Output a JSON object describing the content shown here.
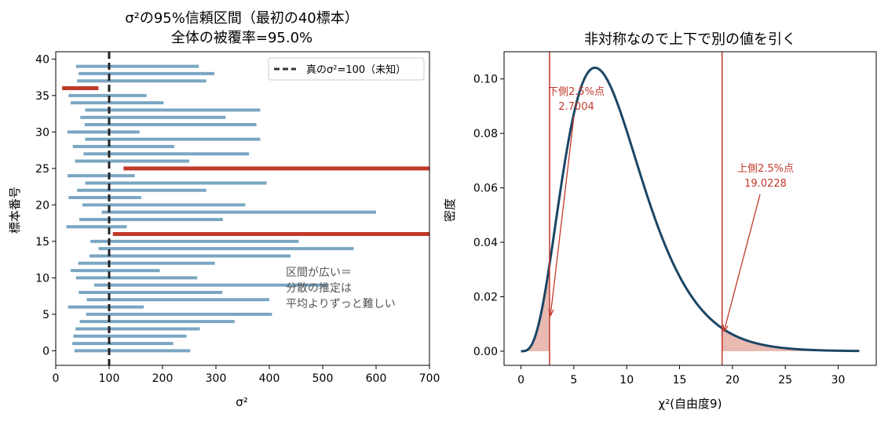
{
  "figure": {
    "background": "#ffffff",
    "colors": {
      "interval": "#7aa6c2",
      "miss": "#c0392b",
      "pdf": "#1b4665",
      "fill": "#e6b2a8",
      "text": "#000000",
      "note": "#555555"
    }
  },
  "chart_data": [
    {
      "type": "bar",
      "orientation": "horizontal-interval",
      "title_line1": "σ²の95%信頼区間（最初の40標本）",
      "title_line2": "全体の被覆率=95.0%",
      "xlabel": "σ²",
      "ylabel": "標本番号",
      "xlim": [
        0,
        700
      ],
      "ylim": [
        -2,
        41
      ],
      "xticks": [
        0,
        100,
        200,
        300,
        400,
        500,
        600,
        700
      ],
      "yticks": [
        0,
        5,
        10,
        15,
        20,
        25,
        30,
        35,
        40
      ],
      "true_value": 100,
      "legend": {
        "label": "真のσ²=100（未知）",
        "placement": "upper right"
      },
      "annotation": [
        "区間が広い＝",
        "分散の推定は",
        "平均よりずっと難しい"
      ],
      "intervals": [
        {
          "lo": 35,
          "hi": 252
        },
        {
          "lo": 31,
          "hi": 220
        },
        {
          "lo": 33,
          "hi": 245
        },
        {
          "lo": 37,
          "hi": 270
        },
        {
          "lo": 45,
          "hi": 335
        },
        {
          "lo": 57,
          "hi": 405
        },
        {
          "lo": 23,
          "hi": 165
        },
        {
          "lo": 58,
          "hi": 400
        },
        {
          "lo": 43,
          "hi": 312
        },
        {
          "lo": 72,
          "hi": 510
        },
        {
          "lo": 38,
          "hi": 265
        },
        {
          "lo": 28,
          "hi": 195
        },
        {
          "lo": 42,
          "hi": 298
        },
        {
          "lo": 63,
          "hi": 440
        },
        {
          "lo": 80,
          "hi": 558
        },
        {
          "lo": 65,
          "hi": 455
        },
        {
          "lo": 107,
          "hi": 760
        },
        {
          "lo": 20,
          "hi": 133
        },
        {
          "lo": 44,
          "hi": 313
        },
        {
          "lo": 86,
          "hi": 600
        },
        {
          "lo": 50,
          "hi": 355
        },
        {
          "lo": 24,
          "hi": 160
        },
        {
          "lo": 40,
          "hi": 282
        },
        {
          "lo": 55,
          "hi": 395
        },
        {
          "lo": 22,
          "hi": 148
        },
        {
          "lo": 127,
          "hi": 900
        },
        {
          "lo": 36,
          "hi": 250
        },
        {
          "lo": 52,
          "hi": 362
        },
        {
          "lo": 32,
          "hi": 222
        },
        {
          "lo": 55,
          "hi": 383
        },
        {
          "lo": 22,
          "hi": 157
        },
        {
          "lo": 54,
          "hi": 376
        },
        {
          "lo": 46,
          "hi": 318
        },
        {
          "lo": 55,
          "hi": 383
        },
        {
          "lo": 28,
          "hi": 202
        },
        {
          "lo": 24,
          "hi": 170
        },
        {
          "lo": 12,
          "hi": 80
        },
        {
          "lo": 40,
          "hi": 282
        },
        {
          "lo": 43,
          "hi": 297
        },
        {
          "lo": 38,
          "hi": 268
        }
      ]
    },
    {
      "type": "line",
      "title": "非対称なので上下で別の値を引く",
      "xlabel": "χ²(自由度9)",
      "ylabel": "密度",
      "xlim": [
        -1.6,
        33.6
      ],
      "ylim": [
        -0.0052,
        0.11
      ],
      "xticks": [
        0,
        5,
        10,
        15,
        20,
        25,
        30
      ],
      "yticks": [
        0.0,
        0.02,
        0.04,
        0.06,
        0.08,
        0.1
      ],
      "series": [
        {
          "df": 9,
          "x_range": [
            0,
            32
          ]
        }
      ],
      "lower_quantile": {
        "value": 2.7004,
        "label": "下側2.5%点",
        "value_text": "2.7004"
      },
      "upper_quantile": {
        "value": 19.0228,
        "label": "上側2.5%点",
        "value_text": "19.0228"
      }
    }
  ]
}
